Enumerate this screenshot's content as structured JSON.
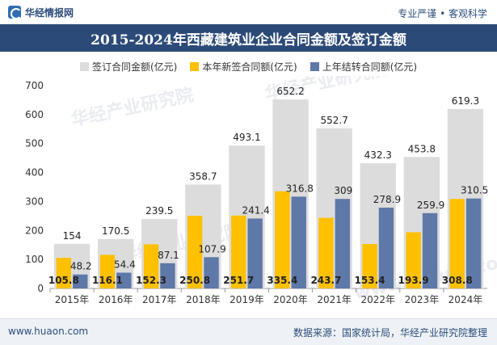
{
  "header": {
    "brand": "华经情报网",
    "slogan": "专业严谨 • 客观科学"
  },
  "footer": {
    "website": "www.huaon.com",
    "source": "数据来源：国家统计局，华经产业研究院整理"
  },
  "watermark": {
    "text": "华经产业研究院",
    "url": "www.huaon.com"
  },
  "colors": {
    "header_bg": "#2c4a78",
    "signed": "#dcdcdc",
    "new_signed": "#ffc000",
    "carryover": "#5e78a8"
  },
  "chart_data": {
    "type": "bar",
    "title": "2015-2024年西藏建筑业企业合同金额及签订金额",
    "categories": [
      "2015年",
      "2016年",
      "2017年",
      "2018年",
      "2019年",
      "2020年",
      "2021年",
      "2022年",
      "2023年",
      "2024年"
    ],
    "ylim": [
      0,
      700
    ],
    "yticks": [
      0,
      100,
      200,
      300,
      400,
      500,
      600,
      700
    ],
    "grid": false,
    "legend_position": "top",
    "series": [
      {
        "name": "签订合同金额(亿元)",
        "values": [
          154,
          170.5,
          239.5,
          358.7,
          493.1,
          652.2,
          552.7,
          432.3,
          453.8,
          619.3
        ]
      },
      {
        "name": "本年新签合同额(亿元)",
        "values": [
          105.8,
          116.1,
          152.3,
          250.8,
          251.7,
          335.4,
          243.7,
          153.4,
          193.9,
          308.8
        ]
      },
      {
        "name": "上年结转合同额(亿元)",
        "values": [
          48.2,
          54.4,
          87.1,
          107.9,
          241.4,
          316.8,
          309,
          278.9,
          259.9,
          310.5
        ]
      }
    ],
    "value_labels": {
      "signed": [
        "154",
        "170.5",
        "239.5",
        "358.7",
        "493.1",
        "652.2",
        "552.7",
        "432.3",
        "453.8",
        "619.3"
      ],
      "new_signed": [
        "105.8",
        "116.1",
        "152.3",
        "250.8",
        "251.7",
        "335.4",
        "243.7",
        "153.4",
        "193.9",
        "308.8"
      ],
      "carryover": [
        "48.2",
        "54.4",
        "87.1",
        "107.9",
        "241.4",
        "316.8",
        "309",
        "278.9",
        "259.9",
        "310.5"
      ]
    }
  }
}
